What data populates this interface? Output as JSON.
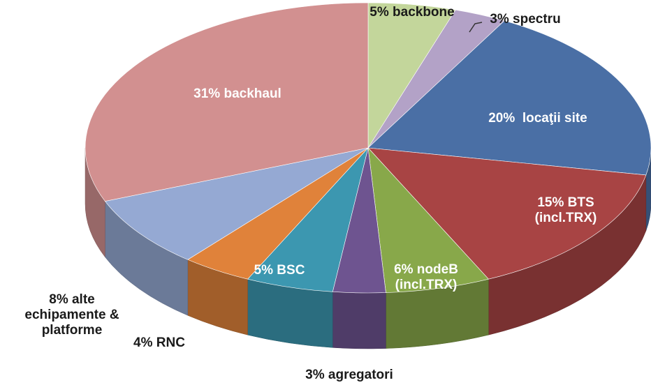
{
  "chart_data": {
    "type": "pie3d",
    "values": [
      5,
      3,
      20,
      15,
      6,
      3,
      5,
      4,
      8,
      31
    ],
    "value_labels": [
      "5% backbone",
      "3% spectru",
      "20%  locaţii site",
      "15% BTS\n(incl.TRX)",
      "6% nodeB\n(incl.TRX)",
      "3% agregatori",
      "5% BSC",
      "4% RNC",
      "8% alte\nechipamente &\nplatforme",
      "31% backhaul"
    ],
    "colors": [
      "#c3d69b",
      "#b3a2c7",
      "#4a6fa5",
      "#a84444",
      "#88a84a",
      "#6e5490",
      "#3c97b0",
      "#e0823a",
      "#95a9d3",
      "#d29090"
    ]
  }
}
